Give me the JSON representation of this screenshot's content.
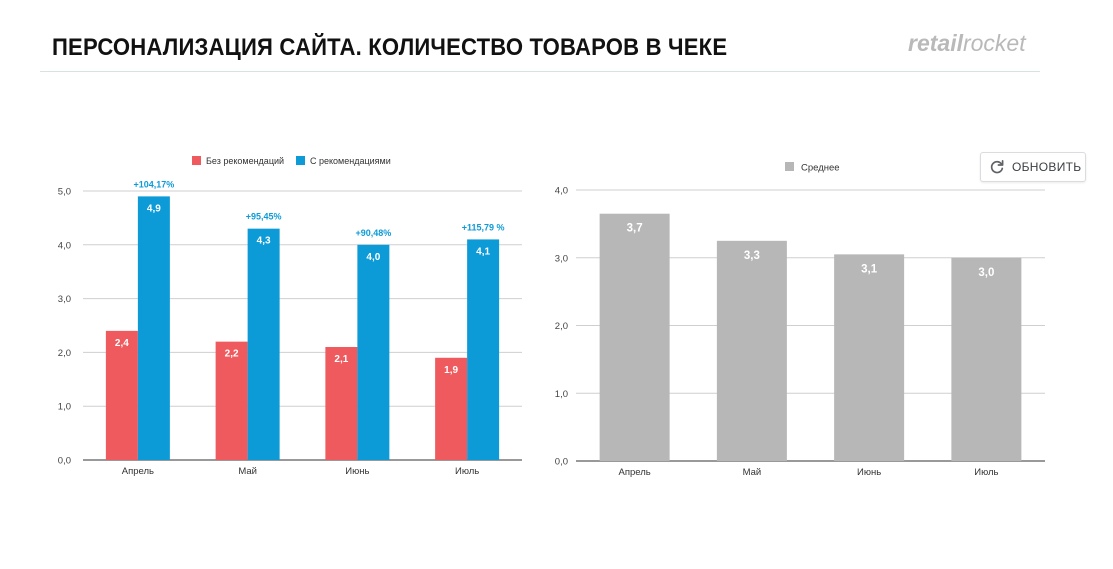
{
  "header": {
    "title": "ПЕРСОНАЛИЗАЦИЯ САЙТА. КОЛИЧЕСТВО ТОВАРОВ В ЧЕКЕ",
    "logo_bold": "retail",
    "logo_light": "rocket",
    "logo_color": "#b9b9b9"
  },
  "refresh_button": {
    "label": "ОБНОВИТЬ",
    "icon": "refresh-icon"
  },
  "chart_data": [
    {
      "type": "bar",
      "categories": [
        "Апрель",
        "Май",
        "Июнь",
        "Июль"
      ],
      "ylim": [
        0,
        5
      ],
      "yticks": [
        "0,0",
        "1,0",
        "2,0",
        "3,0",
        "4,0",
        "5,0"
      ],
      "grid": true,
      "legend_position": "top",
      "series": [
        {
          "name": "Без рекомендаций",
          "color": "#ee5a5e",
          "values": [
            2.4,
            2.2,
            2.1,
            1.9
          ],
          "labels": [
            "2,4",
            "2,2",
            "2,1",
            "1,9"
          ]
        },
        {
          "name": "С рекомендациями",
          "color": "#0d9bd8",
          "values": [
            4.9,
            4.3,
            4.0,
            4.1
          ],
          "labels": [
            "4,9",
            "4,3",
            "4,0",
            "4,1"
          ]
        }
      ],
      "annotations": [
        "+104,17%",
        "+95,45%",
        "+90,48%",
        "+115,79 %"
      ],
      "annotation_color": "#0d9bd8"
    },
    {
      "type": "bar",
      "categories": [
        "Апрель",
        "Май",
        "Июнь",
        "Июль"
      ],
      "ylim": [
        0,
        4
      ],
      "yticks": [
        "0,0",
        "1,0",
        "2,0",
        "3,0",
        "4,0"
      ],
      "grid": true,
      "legend_position": "top",
      "series": [
        {
          "name": "Среднее",
          "color": "#b7b7b7",
          "values": [
            3.65,
            3.25,
            3.05,
            3.0
          ],
          "labels": [
            "3,7",
            "3,3",
            "3,1",
            "3,0"
          ]
        }
      ]
    }
  ]
}
